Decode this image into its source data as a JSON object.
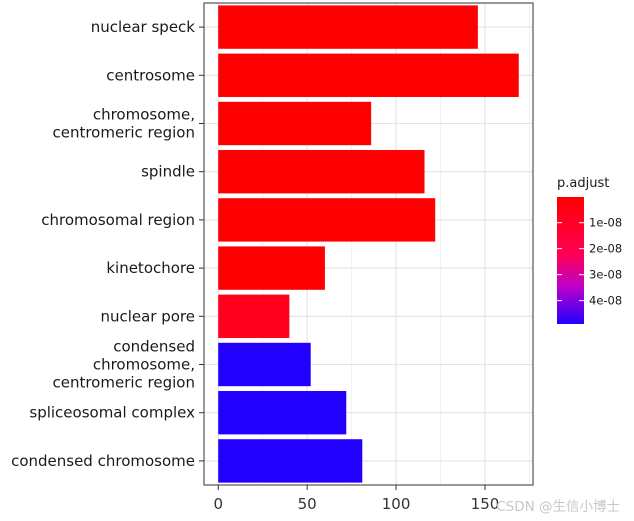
{
  "chart_data": {
    "type": "bar",
    "orientation": "horizontal",
    "categories": [
      "nuclear speck",
      "centrosome",
      "chromosome,\ncentromeric region",
      "spindle",
      "chromosomal region",
      "kinetochore",
      "nuclear pore",
      "condensed\nchromosome,\ncentromeric region",
      "spliceosomal complex",
      "condensed chromosome"
    ],
    "values": [
      146,
      169,
      86,
      116,
      122,
      60,
      40,
      52,
      72,
      81
    ],
    "p_adjust": [
      1e-10,
      1e-10,
      1e-10,
      1e-10,
      1e-10,
      1e-10,
      8e-09,
      4.9e-08,
      4.9e-08,
      4.9e-08
    ],
    "xlim": [
      -8,
      177
    ],
    "x_ticks": [
      0,
      50,
      100,
      150
    ],
    "grid": true,
    "legend": {
      "title": "p.adjust",
      "placement": "right",
      "range": [
        1e-10,
        4.9e-08
      ],
      "ticks": [
        {
          "value": 1e-08,
          "label": "1e-08"
        },
        {
          "value": 2e-08,
          "label": "2e-08"
        },
        {
          "value": 3e-08,
          "label": "3e-08"
        },
        {
          "value": 4e-08,
          "label": "4e-08"
        }
      ],
      "color_low": "#ff0000",
      "color_high": "#0000ff"
    }
  },
  "watermark": "CSDN @生信小博士"
}
